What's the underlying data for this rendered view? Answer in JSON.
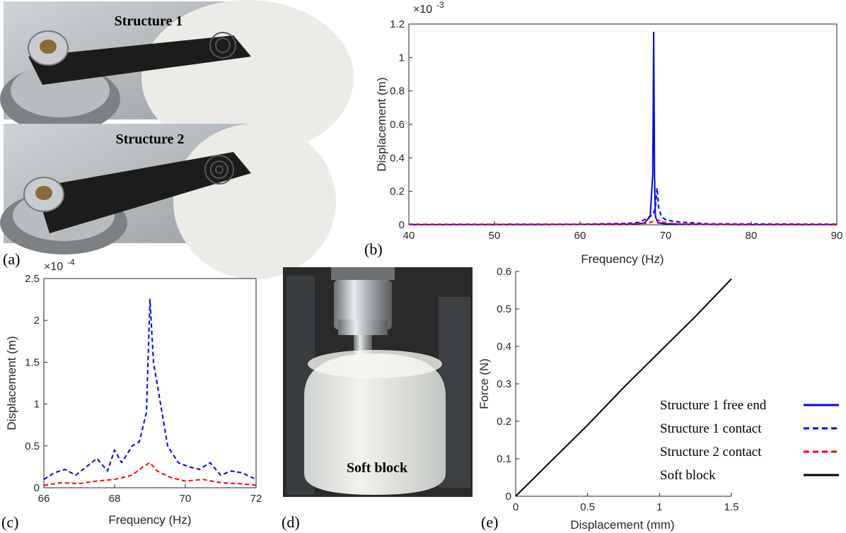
{
  "panels": {
    "a": {
      "letter": "(a)",
      "photo1_label": "Structure 1",
      "photo2_label": "Structure 2"
    },
    "d": {
      "letter": "(d)",
      "photo_label": "Soft block"
    }
  },
  "legend": {
    "entries": [
      {
        "label": "Structure 1 free end",
        "color": "#0000ff",
        "dash": "solid"
      },
      {
        "label": "Structure 1 contact",
        "color": "#0000ff",
        "dash": "dashed"
      },
      {
        "label": "Structure 2 contact",
        "color": "#ff0000",
        "dash": "dashed"
      },
      {
        "label": "Soft block",
        "color": "#000000",
        "dash": "solid"
      }
    ]
  },
  "chart_data": [
    {
      "panel": "(b)",
      "type": "line",
      "xlabel": "Frequency (Hz)",
      "ylabel": "Displacement (m)",
      "exponent_label": "×10",
      "exponent": "-3",
      "xlim": [
        40,
        90
      ],
      "ylim": [
        0,
        1.2
      ],
      "xticks": [
        40,
        50,
        60,
        70,
        80,
        90
      ],
      "yticks": [
        0,
        0.2,
        0.4,
        0.6,
        0.8,
        1,
        1.2
      ],
      "ytick_labels": [
        "0",
        "0.2",
        "0.4",
        "0.6",
        "0.8",
        "1",
        "1.2"
      ],
      "series": [
        {
          "color": "#0000ff",
          "dash": "solid",
          "x": [
            40,
            60,
            66,
            67.5,
            68.2,
            68.5,
            68.6,
            68.7,
            68.8,
            69.1,
            70,
            72,
            80,
            90
          ],
          "y": [
            0.001,
            0.002,
            0.004,
            0.01,
            0.05,
            0.3,
            1.15,
            0.3,
            0.05,
            0.012,
            0.005,
            0.003,
            0.001,
            0.001
          ]
        },
        {
          "color": "#0000ff",
          "dash": "dashed",
          "x": [
            40,
            60,
            65,
            66,
            67,
            67.5,
            68,
            68.5,
            68.8,
            69,
            69.2,
            69.5,
            70,
            70.5,
            71,
            72,
            75,
            90
          ],
          "y": [
            0.003,
            0.004,
            0.008,
            0.01,
            0.015,
            0.03,
            0.045,
            0.06,
            0.1,
            0.22,
            0.1,
            0.05,
            0.03,
            0.025,
            0.02,
            0.015,
            0.006,
            0.004
          ]
        },
        {
          "color": "#ff0000",
          "dash": "dashed",
          "x": [
            40,
            60,
            66,
            68,
            69,
            70,
            72,
            80,
            90
          ],
          "y": [
            0.002,
            0.002,
            0.004,
            0.01,
            0.03,
            0.01,
            0.004,
            0.002,
            0.002
          ]
        }
      ]
    },
    {
      "panel": "(c)",
      "type": "line",
      "xlabel": "Frequency (Hz)",
      "ylabel": "Displacement (m)",
      "exponent_label": "×10",
      "exponent": "-4",
      "xlim": [
        66,
        72
      ],
      "ylim": [
        0,
        2.5
      ],
      "xticks": [
        66,
        68,
        70,
        72
      ],
      "yticks": [
        0,
        0.5,
        1,
        1.5,
        2,
        2.5
      ],
      "ytick_labels": [
        "0",
        "0.5",
        "1",
        "1.5",
        "2",
        "2.5"
      ],
      "series": [
        {
          "color": "#0000ff",
          "dash": "dashed",
          "x": [
            66,
            66.3,
            66.6,
            66.9,
            67.2,
            67.5,
            67.8,
            68.0,
            68.2,
            68.5,
            68.7,
            68.9,
            69.0,
            69.1,
            69.3,
            69.5,
            69.8,
            70.1,
            70.4,
            70.7,
            71.0,
            71.3,
            71.6,
            72
          ],
          "y": [
            0.1,
            0.18,
            0.22,
            0.15,
            0.25,
            0.35,
            0.2,
            0.45,
            0.3,
            0.5,
            0.55,
            0.9,
            2.25,
            1.5,
            1.0,
            0.5,
            0.3,
            0.25,
            0.22,
            0.3,
            0.15,
            0.2,
            0.18,
            0.1
          ]
        },
        {
          "color": "#ff0000",
          "dash": "dashed",
          "x": [
            66,
            66.5,
            67,
            67.5,
            68,
            68.5,
            68.8,
            69.0,
            69.2,
            69.6,
            70,
            70.5,
            71,
            71.5,
            72
          ],
          "y": [
            0.03,
            0.06,
            0.05,
            0.08,
            0.1,
            0.15,
            0.25,
            0.3,
            0.2,
            0.12,
            0.08,
            0.1,
            0.06,
            0.05,
            0.03
          ]
        }
      ]
    },
    {
      "panel": "(e)",
      "type": "line",
      "xlabel": "Displacement (mm)",
      "ylabel": "Force (N)",
      "xlim": [
        0,
        1.5
      ],
      "ylim": [
        0,
        0.6
      ],
      "xticks": [
        0,
        0.5,
        1,
        1.5
      ],
      "xtick_labels": [
        "0",
        "0.5",
        "1",
        "1.5"
      ],
      "yticks": [
        0,
        0.1,
        0.2,
        0.3,
        0.4,
        0.5,
        0.6
      ],
      "ytick_labels": [
        "0",
        "0.1",
        "0.2",
        "0.3",
        "0.4",
        "0.5",
        "0.6"
      ],
      "series": [
        {
          "color": "#000000",
          "dash": "solid",
          "x": [
            0,
            0.25,
            0.5,
            0.75,
            1.0,
            1.25,
            1.5
          ],
          "y": [
            0,
            0.095,
            0.19,
            0.29,
            0.385,
            0.48,
            0.58
          ]
        }
      ]
    }
  ]
}
